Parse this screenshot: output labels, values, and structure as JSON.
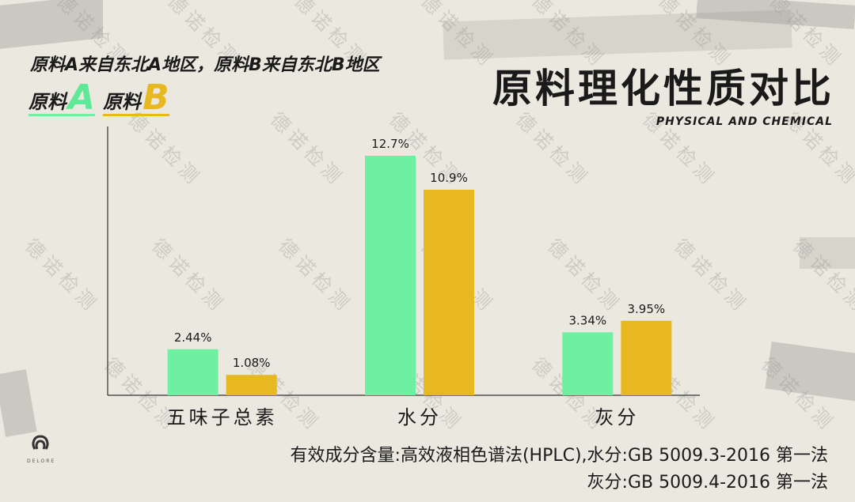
{
  "subtitle": "原料A来自东北A地区，原料B来自东北B地区",
  "legend": {
    "a": {
      "prefix": "原料",
      "letter": "A"
    },
    "b": {
      "prefix": "原料",
      "letter": "B"
    }
  },
  "title": "原料理化性质对比",
  "title_en": "PHYSICAL AND CHEMICAL",
  "watermark_text": "德诺检测",
  "logo_text": "DELORE",
  "notes": [
    "有效成分含量:高效液相色谱法(HPLC),水分:GB 5009.3-2016 第一法",
    "灰分:GB 5009.4-2016 第一法"
  ],
  "colors": {
    "series_a": "#6ef0a0",
    "series_b": "#e8b820"
  },
  "chart_data": {
    "type": "bar",
    "title": "原料理化性质对比",
    "xlabel": "",
    "ylabel": "",
    "ylim": [
      0,
      14
    ],
    "grid": false,
    "legend": "top-left",
    "categories": [
      "五味子总素",
      "水分",
      "灰分"
    ],
    "series": [
      {
        "name": "原料A",
        "values": [
          2.44,
          12.7,
          3.34
        ],
        "labels": [
          "2.44%",
          "12.7%",
          "3.34%"
        ]
      },
      {
        "name": "原料B",
        "values": [
          1.08,
          10.9,
          3.95
        ],
        "labels": [
          "1.08%",
          "10.9%",
          "3.95%"
        ]
      }
    ]
  }
}
